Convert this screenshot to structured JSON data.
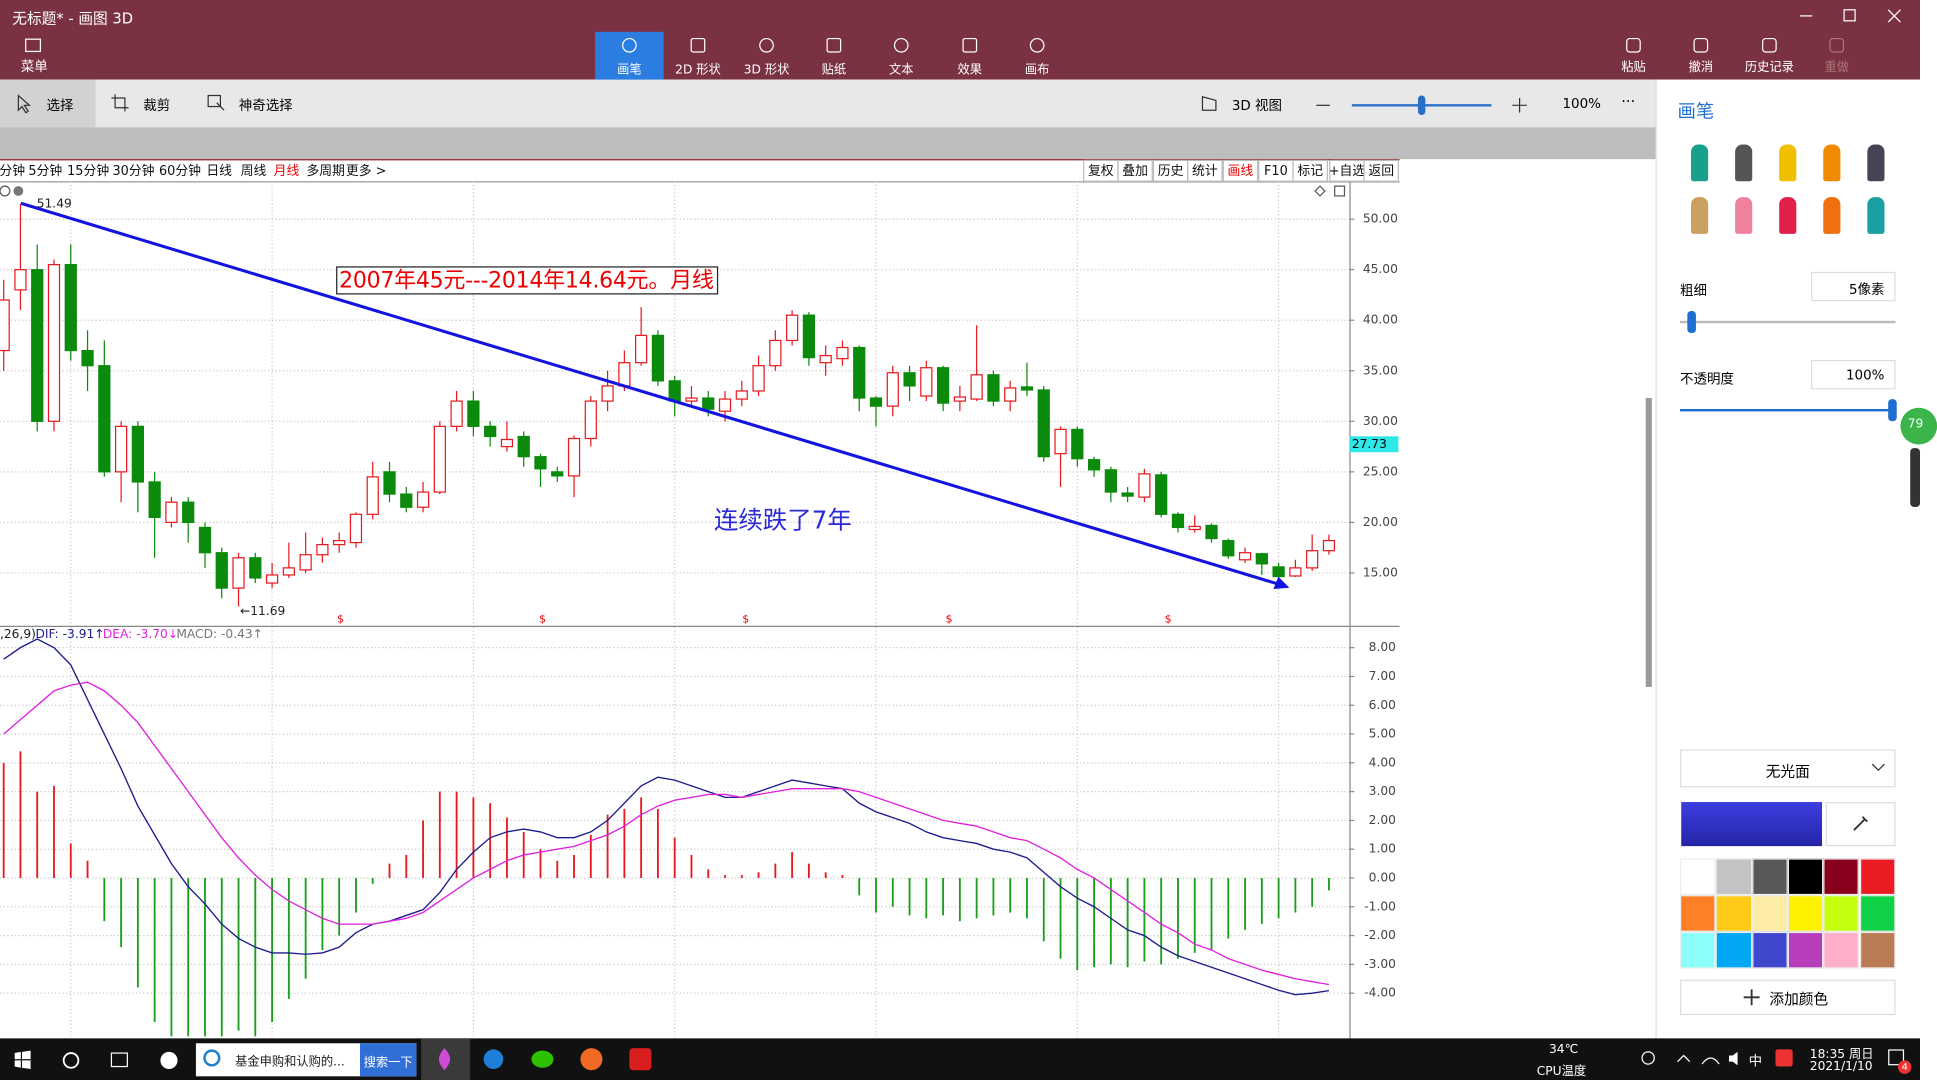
{
  "window": {
    "title": "无标题* - 画图 3D"
  },
  "ribbon": {
    "menu": "菜单",
    "tools": [
      "画笔",
      "2D 形状",
      "3D 形状",
      "贴纸",
      "文本",
      "效果",
      "画布"
    ],
    "actions": [
      "粘贴",
      "撤消",
      "历史记录",
      "重做"
    ]
  },
  "toolbar": {
    "select": "选择",
    "crop": "裁剪",
    "magic_select": "神奇选择",
    "view_3d": "3D 视图",
    "zoom": "100%",
    "more": "···"
  },
  "panel": {
    "title": "画笔",
    "thickness_label": "粗细",
    "thickness": "5像素",
    "opacity_label": "不透明度",
    "opacity": "100%",
    "badge": "79",
    "finish": "无光面",
    "add_color": "添加颜色"
  },
  "taskbar": {
    "task": "基金申购和认购的...",
    "search_button": "搜索一下",
    "temperature": "34℃",
    "temperature_label": "CPU温度",
    "ime": "中",
    "time": "18:35 周日",
    "date": "2021/1/10",
    "notifications": "4"
  },
  "chart_data": {
    "type": "candlestick",
    "periods": [
      "分钟",
      "5分钟",
      "15分钟",
      "30分钟",
      "60分钟",
      "日线",
      "周线",
      "月线",
      "多周期",
      "更多 >"
    ],
    "period_highlight": 7,
    "tools": [
      "复权",
      "叠加",
      "历史",
      "统计",
      "画线",
      "F10",
      "标记",
      "+自选",
      "返回"
    ],
    "tool_highlight": 4,
    "annotation_box": "2007年45元---2014年14.64元。月线",
    "annotation_note": "连续跌了7年",
    "high_label": 51.49,
    "low_label": {
      "value": 11.69,
      "label": "←11.69"
    },
    "last_price": 27.73,
    "markers": [
      "$",
      "$",
      "$",
      "$",
      "$"
    ],
    "up_color": "#e8191e",
    "down_color": "#0b8a0b",
    "open": [
      37,
      43,
      45,
      30,
      45.5,
      37,
      35.5,
      25,
      29.5,
      24,
      20,
      22,
      19.5,
      17,
      13.5,
      16.5,
      14,
      14.8,
      15.3,
      16.8,
      17.8,
      18,
      20.8,
      25,
      22.8,
      21.5,
      23,
      29.5,
      32,
      29.5,
      27.5,
      28.5,
      26.5,
      25,
      24.6,
      28.3,
      32,
      33.5,
      35.8,
      38.5,
      34,
      32,
      32.3,
      31,
      32.2,
      33,
      35.5,
      38,
      40.5,
      35.8,
      36.2,
      37.3,
      32.3,
      31.5,
      34.8,
      32.5,
      35.3,
      32,
      32.2,
      34.6,
      32,
      33.4,
      33.1,
      26.8,
      29.2,
      26.2,
      25.2,
      22.9,
      22.5,
      24.7,
      20.8,
      19.3,
      19.7,
      18.2,
      16.3,
      16.9,
      15.6,
      14.7,
      15.5,
      17.2
    ],
    "close": [
      42,
      45,
      30,
      45.5,
      37,
      35.5,
      25,
      29.5,
      24,
      20.5,
      22,
      20,
      17,
      13.5,
      16.5,
      14.5,
      14.8,
      15.5,
      16.8,
      17.8,
      18.2,
      20.8,
      24.5,
      22.8,
      21.5,
      23,
      29.5,
      32,
      29.5,
      28.5,
      28.2,
      26.5,
      25.3,
      24.6,
      28.3,
      32,
      33.5,
      35.8,
      38.5,
      34,
      32,
      32.3,
      31.2,
      32.2,
      33,
      35.5,
      38,
      40.5,
      36.3,
      36.5,
      37.3,
      32.3,
      31.5,
      34.8,
      33.5,
      35.3,
      31.8,
      32.4,
      34.6,
      32,
      33.3,
      33.1,
      26.5,
      29.2,
      26.3,
      25.2,
      23,
      22.6,
      24.8,
      20.8,
      19.5,
      19.6,
      18.4,
      16.7,
      17,
      15.9,
      14.64,
      15.5,
      17.2,
      18.2
    ],
    "high": [
      44,
      51.49,
      47.5,
      46,
      47.5,
      39,
      38,
      30,
      30,
      25,
      22.5,
      22.5,
      20,
      17.5,
      17,
      17,
      16,
      18,
      19,
      18.5,
      19,
      21,
      26,
      26,
      23.5,
      24,
      30,
      33,
      33,
      30,
      30,
      29,
      26.8,
      25.5,
      28.6,
      32.5,
      35,
      37,
      41.3,
      39,
      34.5,
      33.5,
      33,
      33,
      34,
      36.5,
      39,
      41,
      40.8,
      37.5,
      38,
      37.5,
      32.5,
      35.5,
      35.5,
      36,
      35.5,
      33.5,
      39.5,
      35,
      34,
      35.8,
      33.5,
      29.5,
      29.5,
      26.5,
      25.5,
      23.5,
      25.3,
      25,
      21,
      20.7,
      19.9,
      18.4,
      17.5,
      17,
      16,
      16.3,
      18.8,
      18.8
    ],
    "low": [
      35,
      41,
      29,
      29,
      36,
      33,
      24.5,
      22,
      21,
      16.5,
      19.5,
      18,
      15.5,
      12.5,
      11.69,
      14,
      13.5,
      14.5,
      15,
      16,
      17,
      17.5,
      20.3,
      22,
      21,
      21,
      22.8,
      29,
      28.5,
      27.5,
      27,
      25.5,
      23.5,
      24,
      22.5,
      27.5,
      31,
      33,
      35.5,
      33.5,
      30.5,
      31.5,
      30.5,
      30,
      31.5,
      32.5,
      35,
      37.5,
      35.5,
      34.5,
      35.5,
      31,
      29.5,
      30.5,
      32,
      32,
      31,
      31,
      32,
      31.5,
      31,
      32.5,
      26,
      23.5,
      25.5,
      24.5,
      22,
      22,
      22,
      20.5,
      19,
      19,
      18,
      16.4,
      16,
      14.8,
      14.2,
      14.6,
      15.2,
      16.8
    ],
    "ylim": [
      9.9,
      53.75
    ],
    "yticks": [
      {
        "value": 15,
        "label": "15.00"
      },
      {
        "value": 20,
        "label": "20.00"
      },
      {
        "value": 25,
        "label": "25.00"
      },
      {
        "value": 30,
        "label": "30.00"
      },
      {
        "value": 35,
        "label": "35.00"
      },
      {
        "value": 40,
        "label": "40.00"
      },
      {
        "value": 45,
        "label": "45.00"
      },
      {
        "value": 50,
        "label": "50.00"
      }
    ],
    "grid": true,
    "macd": {
      "legend_prefix": ",26,9)",
      "ylim": [
        -5.57,
        8.72
      ],
      "yticks": [
        {
          "value": -4,
          "label": "-4.00"
        },
        {
          "value": -3,
          "label": "-3.00"
        },
        {
          "value": -2,
          "label": "-2.00"
        },
        {
          "value": -1,
          "label": "-1.00"
        },
        {
          "value": 0,
          "label": "0.00"
        },
        {
          "value": 1,
          "label": "1.00"
        },
        {
          "value": 2,
          "label": "2.00"
        },
        {
          "value": 3,
          "label": "3.00"
        },
        {
          "value": 4,
          "label": "4.00"
        },
        {
          "value": 5,
          "label": "5.00"
        },
        {
          "value": 6,
          "label": "6.00"
        },
        {
          "value": 7,
          "label": "7.00"
        },
        {
          "value": 8,
          "label": "8.00"
        }
      ],
      "series": [
        {
          "name": "DIF",
          "label": "DIF: -3.91↑",
          "color": "#1c1c8c",
          "values": [
            7.6,
            8.0,
            8.3,
            8.0,
            7.4,
            6.2,
            5.0,
            3.8,
            2.5,
            1.5,
            0.5,
            -0.3,
            -0.9,
            -1.6,
            -2.1,
            -2.4,
            -2.6,
            -2.6,
            -2.65,
            -2.6,
            -2.4,
            -1.9,
            -1.6,
            -1.5,
            -1.3,
            -1.1,
            -0.5,
            0.3,
            0.9,
            1.4,
            1.6,
            1.7,
            1.6,
            1.4,
            1.4,
            1.6,
            2.0,
            2.6,
            3.2,
            3.5,
            3.4,
            3.2,
            3.0,
            2.8,
            2.8,
            3.0,
            3.2,
            3.4,
            3.3,
            3.2,
            3.1,
            2.6,
            2.3,
            2.1,
            1.9,
            1.6,
            1.4,
            1.3,
            1.2,
            1.0,
            0.9,
            0.7,
            0.2,
            -0.3,
            -0.7,
            -1.0,
            -1.4,
            -1.8,
            -2.0,
            -2.4,
            -2.7,
            -2.9,
            -3.1,
            -3.3,
            -3.5,
            -3.7,
            -3.9,
            -4.05,
            -4.0,
            -3.91
          ]
        },
        {
          "name": "DEA",
          "label": "DEA: -3.70↓",
          "color": "#e020e0",
          "values": [
            5.0,
            5.5,
            6.0,
            6.5,
            6.7,
            6.8,
            6.5,
            6.0,
            5.4,
            4.6,
            3.8,
            3.0,
            2.2,
            1.4,
            0.7,
            0.1,
            -0.4,
            -0.8,
            -1.1,
            -1.4,
            -1.6,
            -1.6,
            -1.6,
            -1.5,
            -1.4,
            -1.2,
            -0.8,
            -0.4,
            0.0,
            0.3,
            0.6,
            0.8,
            0.9,
            1.0,
            1.1,
            1.3,
            1.5,
            1.8,
            2.2,
            2.5,
            2.7,
            2.8,
            2.9,
            2.9,
            2.8,
            2.9,
            3.0,
            3.1,
            3.1,
            3.1,
            3.1,
            3.0,
            2.8,
            2.6,
            2.4,
            2.2,
            2.0,
            1.9,
            1.8,
            1.6,
            1.4,
            1.3,
            1.0,
            0.7,
            0.3,
            0.0,
            -0.4,
            -0.8,
            -1.2,
            -1.6,
            -1.9,
            -2.3,
            -2.5,
            -2.8,
            -3.0,
            -3.2,
            -3.35,
            -3.5,
            -3.6,
            -3.7
          ]
        }
      ],
      "histogram": {
        "name": "MACD",
        "label": "MACD: -0.43↑",
        "values": [
          4.0,
          4.4,
          3.0,
          3.2,
          1.2,
          0.6,
          -1.5,
          -2.4,
          -3.8,
          -5,
          -5.5,
          -5.5,
          -5.5,
          -5.5,
          -5.3,
          -5.5,
          -5.0,
          -4.2,
          -3.5,
          -2.5,
          -2.0,
          -1.2,
          -0.2,
          0.5,
          0.8,
          2.0,
          3.0,
          3.0,
          2.8,
          2.6,
          2.1,
          1.6,
          1.0,
          0.6,
          0.8,
          1.5,
          2.2,
          2.4,
          2.8,
          2.4,
          1.4,
          0.8,
          0.3,
          0.1,
          0.1,
          0.2,
          0.5,
          0.9,
          0.5,
          0.2,
          0.1,
          -0.6,
          -1.2,
          -1.0,
          -1.3,
          -1.4,
          -1.3,
          -1.5,
          -1.4,
          -1.3,
          -1.2,
          -1.4,
          -2.2,
          -2.8,
          -3.2,
          -3.1,
          -3.0,
          -3.1,
          -2.9,
          -3.0,
          -2.8,
          -2.6,
          -2.5,
          -2.1,
          -1.8,
          -1.6,
          -1.4,
          -1.2,
          -1.0,
          -0.43
        ]
      }
    }
  }
}
